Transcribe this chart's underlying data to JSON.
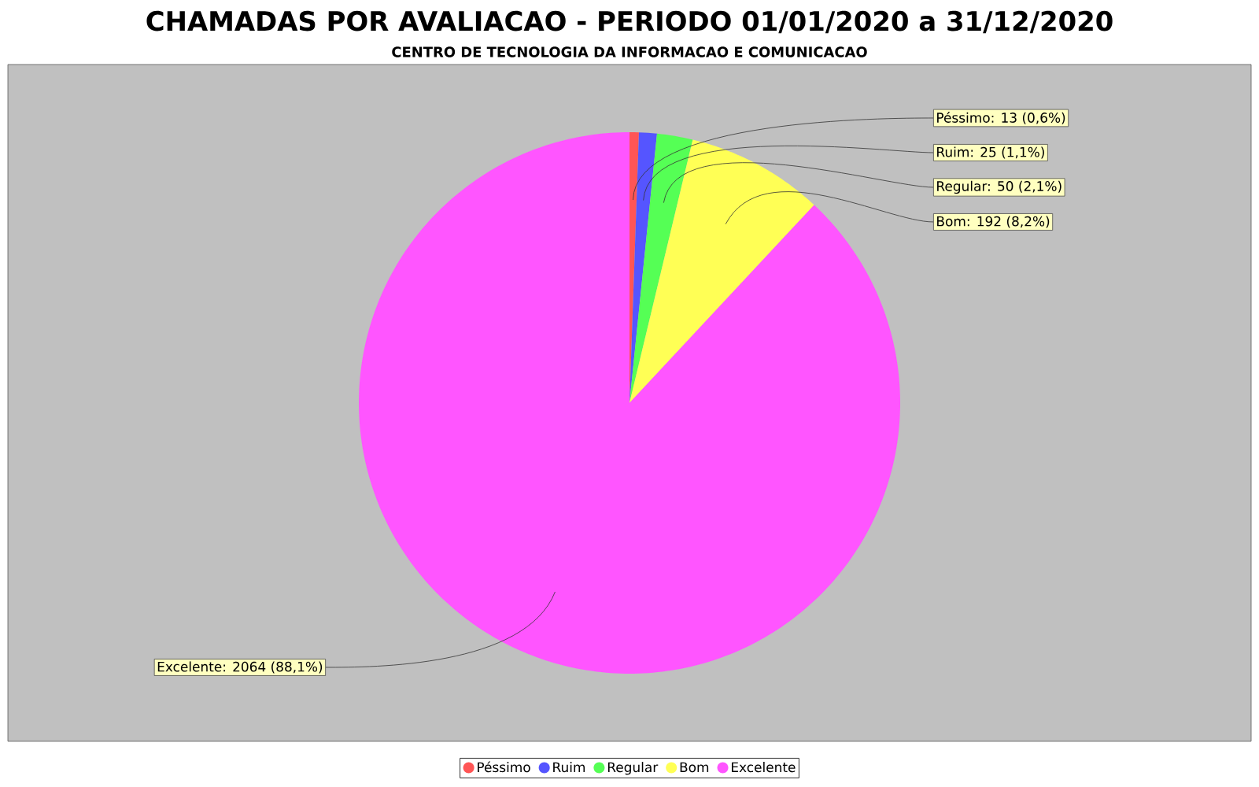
{
  "chart_data": {
    "type": "pie",
    "title": "CHAMADAS POR AVALIACAO - PERIODO 01/01/2020 a 31/12/2020",
    "subtitle": "CENTRO DE TECNOLOGIA DA INFORMACAO E COMUNICACAO",
    "categories": [
      "Péssimo",
      "Ruim",
      "Regular",
      "Bom",
      "Excelente"
    ],
    "values": [
      13,
      25,
      50,
      192,
      2064
    ],
    "value_labels": [
      "Péssimo: 13 (0,6%)",
      "Ruim: 25 (1,1%)",
      "Regular: 50 (2,1%)",
      "Bom: 192 (8,2%)",
      "Excelente: 2064 (88,1%)"
    ],
    "colors": [
      "#ff5555",
      "#5555ff",
      "#55ff55",
      "#ffff55",
      "#ff55ff"
    ],
    "legend": "bottom"
  }
}
